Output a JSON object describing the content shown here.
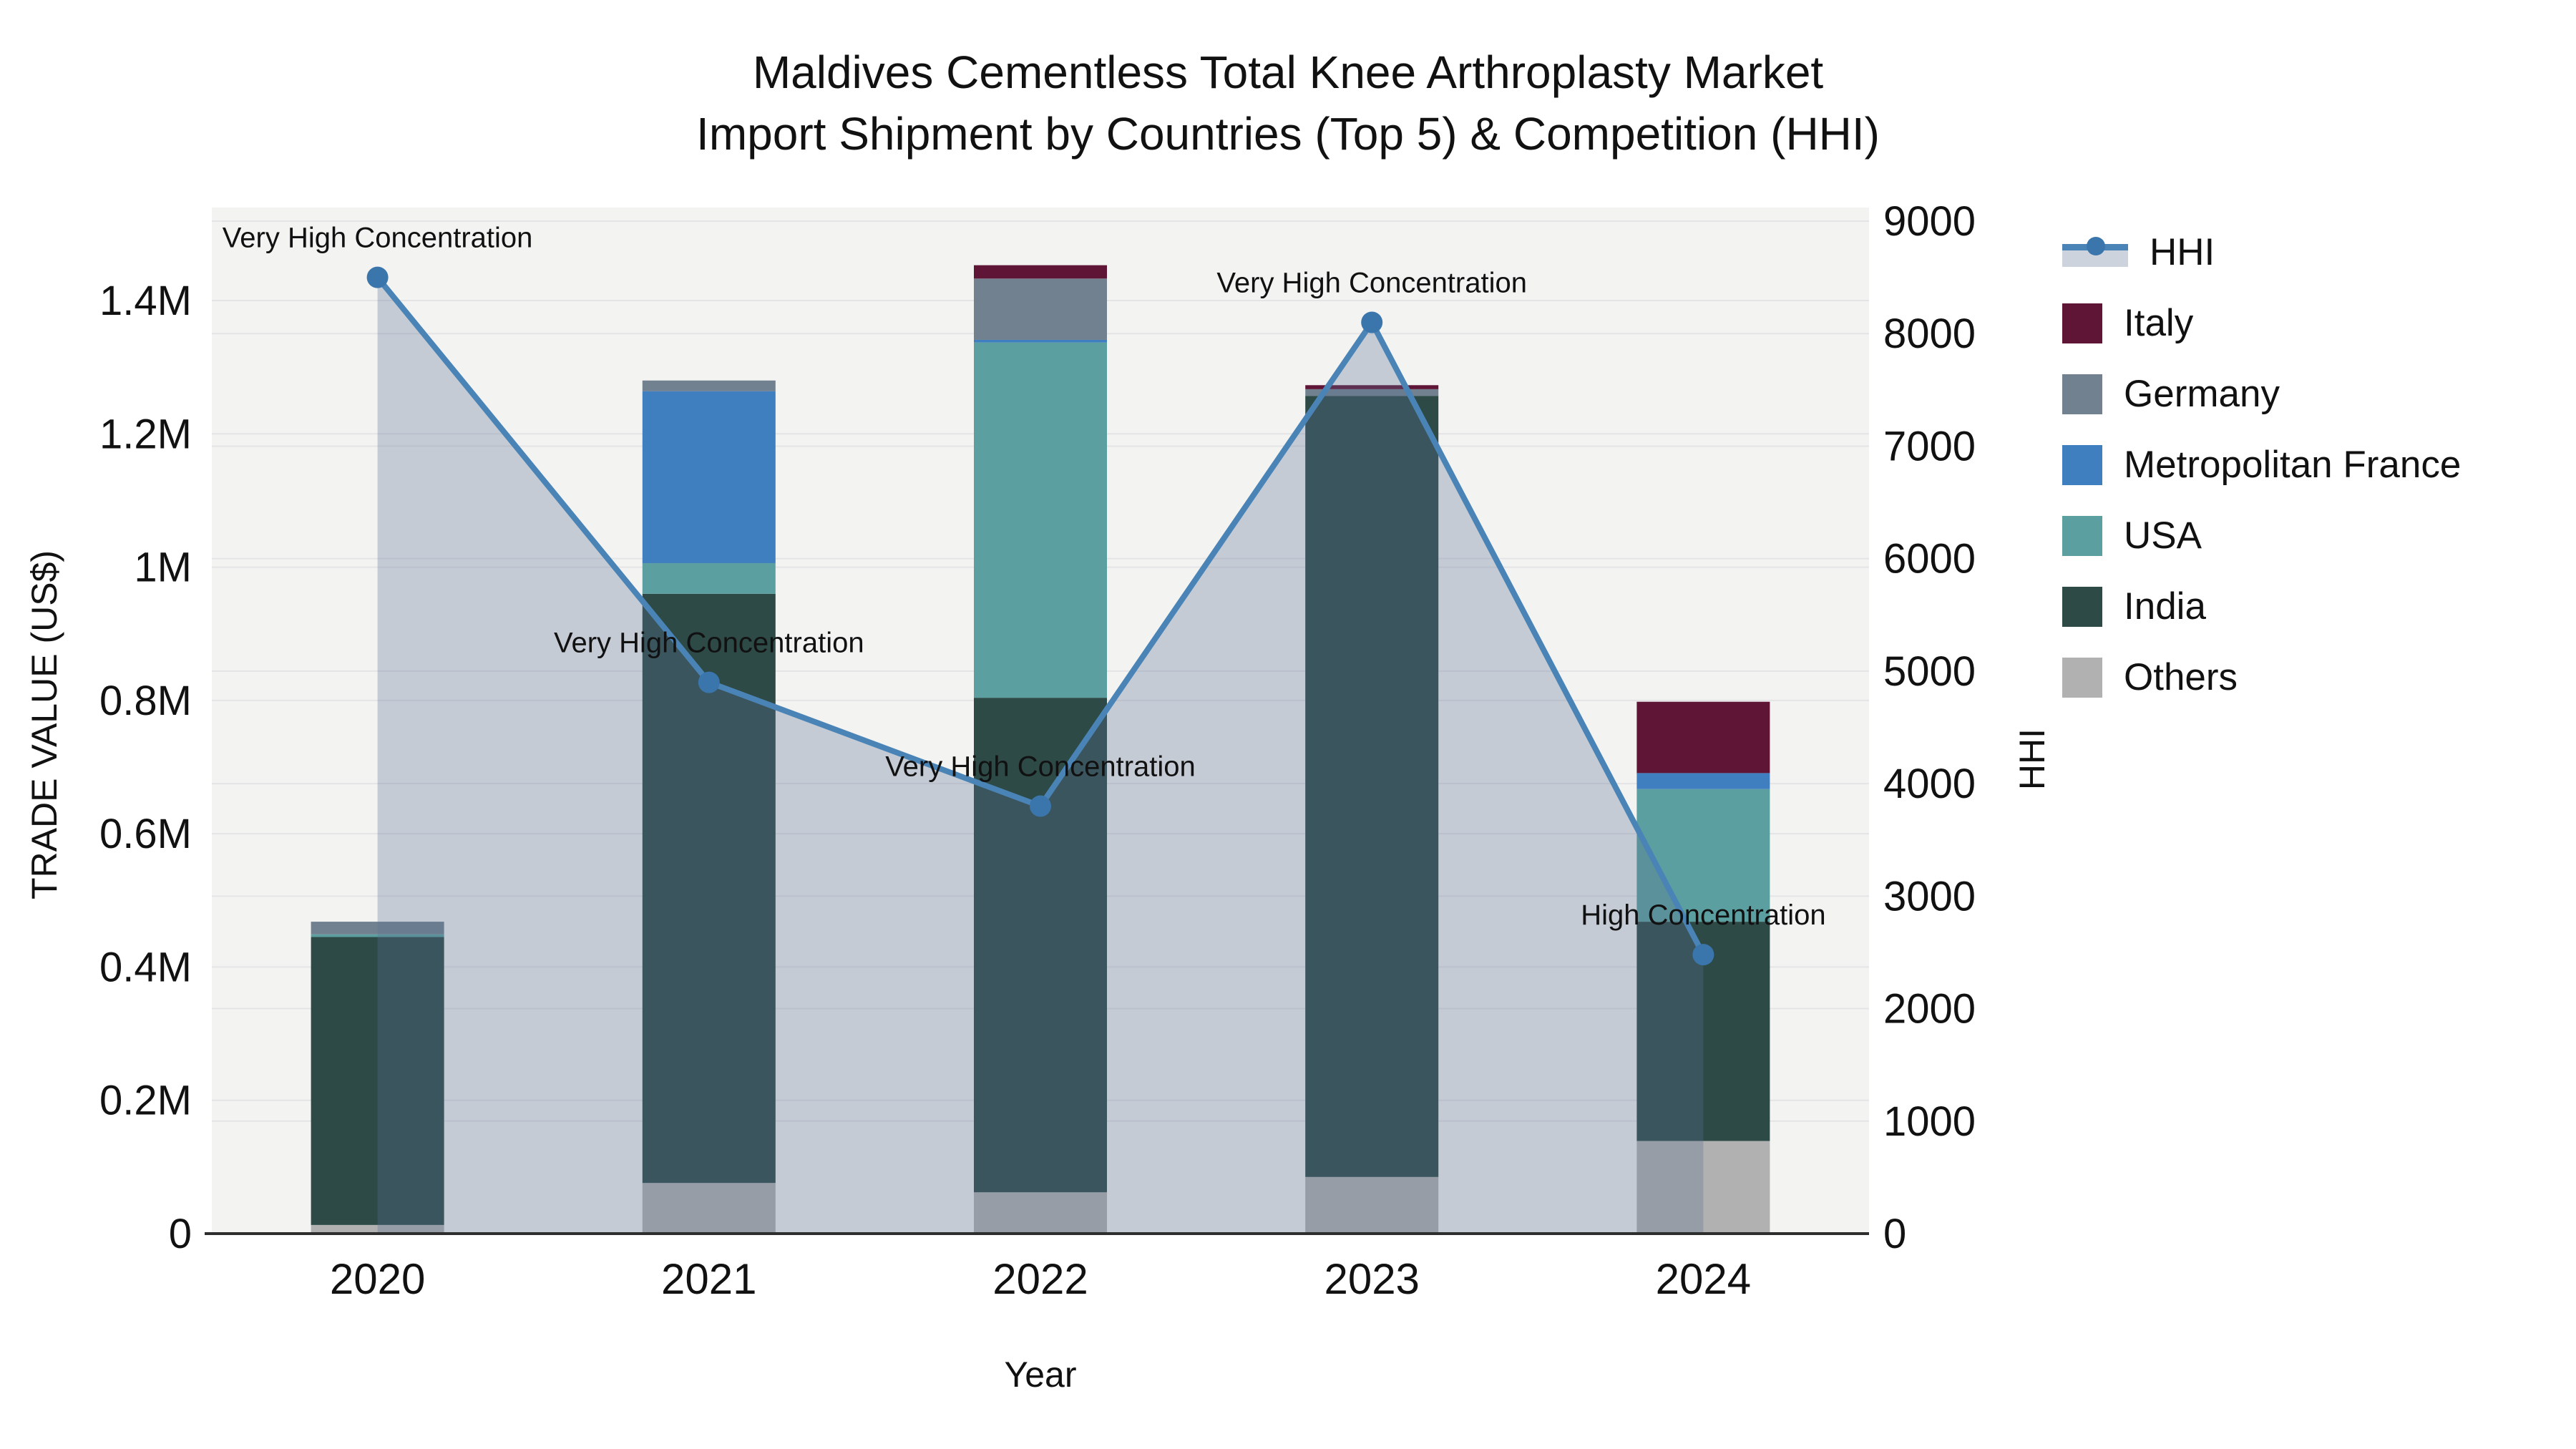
{
  "title": {
    "line1": "Maldives Cementless Total Knee Arthroplasty Market",
    "line2": "Import Shipment by Countries (Top 5) & Competition (HHI)"
  },
  "axes": {
    "x": {
      "label": "Year"
    },
    "y_left": {
      "label": "TRADE VALUE (US$)",
      "ticks": [
        {
          "value": 0,
          "label": "0"
        },
        {
          "value": 200000,
          "label": "0.2M"
        },
        {
          "value": 400000,
          "label": "0.4M"
        },
        {
          "value": 600000,
          "label": "0.6M"
        },
        {
          "value": 800000,
          "label": "0.8M"
        },
        {
          "value": 1000000,
          "label": "1M"
        },
        {
          "value": 1200000,
          "label": "1.2M"
        },
        {
          "value": 1400000,
          "label": "1.4M"
        }
      ]
    },
    "y_right": {
      "label": "HHI",
      "ticks": [
        0,
        1000,
        2000,
        3000,
        4000,
        5000,
        6000,
        7000,
        8000,
        9000
      ]
    }
  },
  "legend": [
    {
      "label": "HHI",
      "type": "line",
      "color": "#4a84b6"
    },
    {
      "label": "Italy",
      "type": "swatch",
      "color": "#5f1535"
    },
    {
      "label": "Germany",
      "type": "swatch",
      "color": "#71818f"
    },
    {
      "label": "Metropolitan France",
      "type": "swatch",
      "color": "#3f7fbf"
    },
    {
      "label": "USA",
      "type": "swatch",
      "color": "#5c9fa0"
    },
    {
      "label": "India",
      "type": "swatch",
      "color": "#2d4a47"
    },
    {
      "label": "Others",
      "type": "swatch",
      "color": "#b1b1b1"
    }
  ],
  "colors": {
    "plot_bg": "#f3f3f2",
    "grid": "#e4e4e6",
    "axis_line": "#2e2e2e",
    "hhi_line": "#4a84b6",
    "hhi_marker": "#3a76ac",
    "hhi_area": "rgba(90,112,145,0.30)",
    "text": "#111111"
  },
  "chart_data": {
    "type": "bar",
    "subtype": "stacked-bars-with-line",
    "categories": [
      "2020",
      "2021",
      "2022",
      "2023",
      "2024"
    ],
    "ylabel_left": "TRADE VALUE (US$)",
    "ylabel_right": "HHI",
    "xlabel": "Year",
    "ylim_left": [
      0,
      1540000
    ],
    "ylim_right": [
      0,
      9120
    ],
    "grid": true,
    "legend_position": "right",
    "series": [
      {
        "name": "Others",
        "color": "#b1b1b1",
        "values": [
          13000,
          76000,
          62000,
          85000,
          139000
        ]
      },
      {
        "name": "India",
        "color": "#2d4a47",
        "values": [
          432000,
          884000,
          742000,
          1172000,
          329000
        ]
      },
      {
        "name": "USA",
        "color": "#5c9fa0",
        "values": [
          4000,
          46000,
          533000,
          0,
          199000
        ]
      },
      {
        "name": "Metropolitan France",
        "color": "#3f7fbf",
        "values": [
          0,
          258000,
          4000,
          0,
          24000
        ]
      },
      {
        "name": "Germany",
        "color": "#71818f",
        "values": [
          19000,
          16000,
          92000,
          10000,
          0
        ]
      },
      {
        "name": "Italy",
        "color": "#5f1535",
        "values": [
          0,
          0,
          20000,
          6000,
          107000
        ]
      }
    ],
    "line": {
      "name": "HHI",
      "axis": "right",
      "values": [
        8500,
        4900,
        3800,
        8100,
        2480
      ]
    },
    "annotations": [
      {
        "category": "2020",
        "text": "Very High Concentration"
      },
      {
        "category": "2021",
        "text": "Very High Concentration"
      },
      {
        "category": "2022",
        "text": "Very High Concentration"
      },
      {
        "category": "2023",
        "text": "Very High Concentration"
      },
      {
        "category": "2024",
        "text": "High Concentration"
      }
    ]
  }
}
